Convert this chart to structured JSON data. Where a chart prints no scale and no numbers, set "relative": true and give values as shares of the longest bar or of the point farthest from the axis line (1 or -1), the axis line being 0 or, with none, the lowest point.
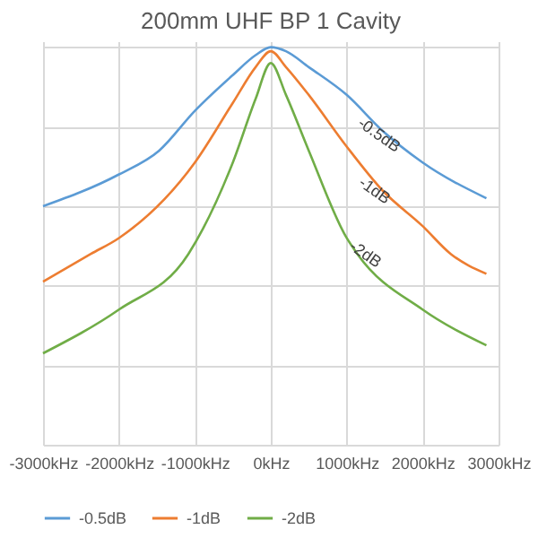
{
  "chart_data": {
    "type": "line",
    "title": "200mm UHF BP 1 Cavity",
    "relative": true,
    "grid": true,
    "legend": "bottom",
    "tick_labels": "x",
    "xlim": [
      -3000,
      3000
    ],
    "xticks": [
      {
        "value": -3000,
        "label": "-3000kHz"
      },
      {
        "value": -2000,
        "label": "-2000kHz"
      },
      {
        "value": -1000,
        "label": "-1000kHz"
      },
      {
        "value": 0,
        "label": "0kHz"
      },
      {
        "value": 1000,
        "label": "1000kHz"
      },
      {
        "value": 2000,
        "label": "2000kHz"
      },
      {
        "value": 3000,
        "label": "3000kHz"
      }
    ],
    "series": [
      {
        "name": "-0.5dB",
        "color": "#5b9bd5",
        "x": [
          -3000,
          -2000,
          -1470,
          -1000,
          -500,
          -200,
          0,
          200,
          500,
          1000,
          1470,
          2000,
          2840
        ],
        "values": [
          0.6,
          0.68,
          0.74,
          0.84,
          0.93,
          0.98,
          1.0,
          0.99,
          0.95,
          0.88,
          0.79,
          0.71,
          0.62
        ]
      },
      {
        "name": "-1dB",
        "color": "#ed7d31",
        "x": [
          -3000,
          -2370,
          -2000,
          -1000,
          -500,
          -200,
          0,
          200,
          500,
          1000,
          1470,
          2000,
          2370,
          2840
        ],
        "values": [
          0.41,
          0.48,
          0.52,
          0.71,
          0.86,
          0.95,
          0.99,
          0.95,
          0.88,
          0.75,
          0.64,
          0.55,
          0.48,
          0.43
        ]
      },
      {
        "name": "-2dB",
        "color": "#70ad47",
        "x": [
          -3000,
          -2000,
          -1085,
          -500,
          -200,
          0,
          200,
          500,
          1000,
          1140,
          2000,
          2840
        ],
        "values": [
          0.23,
          0.34,
          0.48,
          0.71,
          0.87,
          0.96,
          0.88,
          0.74,
          0.52,
          0.48,
          0.34,
          0.25
        ]
      }
    ],
    "annotations": [
      {
        "text": "-0.5dB",
        "x": 1430,
        "y": 0.78
      },
      {
        "text": "-1dB",
        "x": 1370,
        "y": 0.64
      },
      {
        "text": "-2dB",
        "x": 1250,
        "y": 0.48
      }
    ]
  }
}
